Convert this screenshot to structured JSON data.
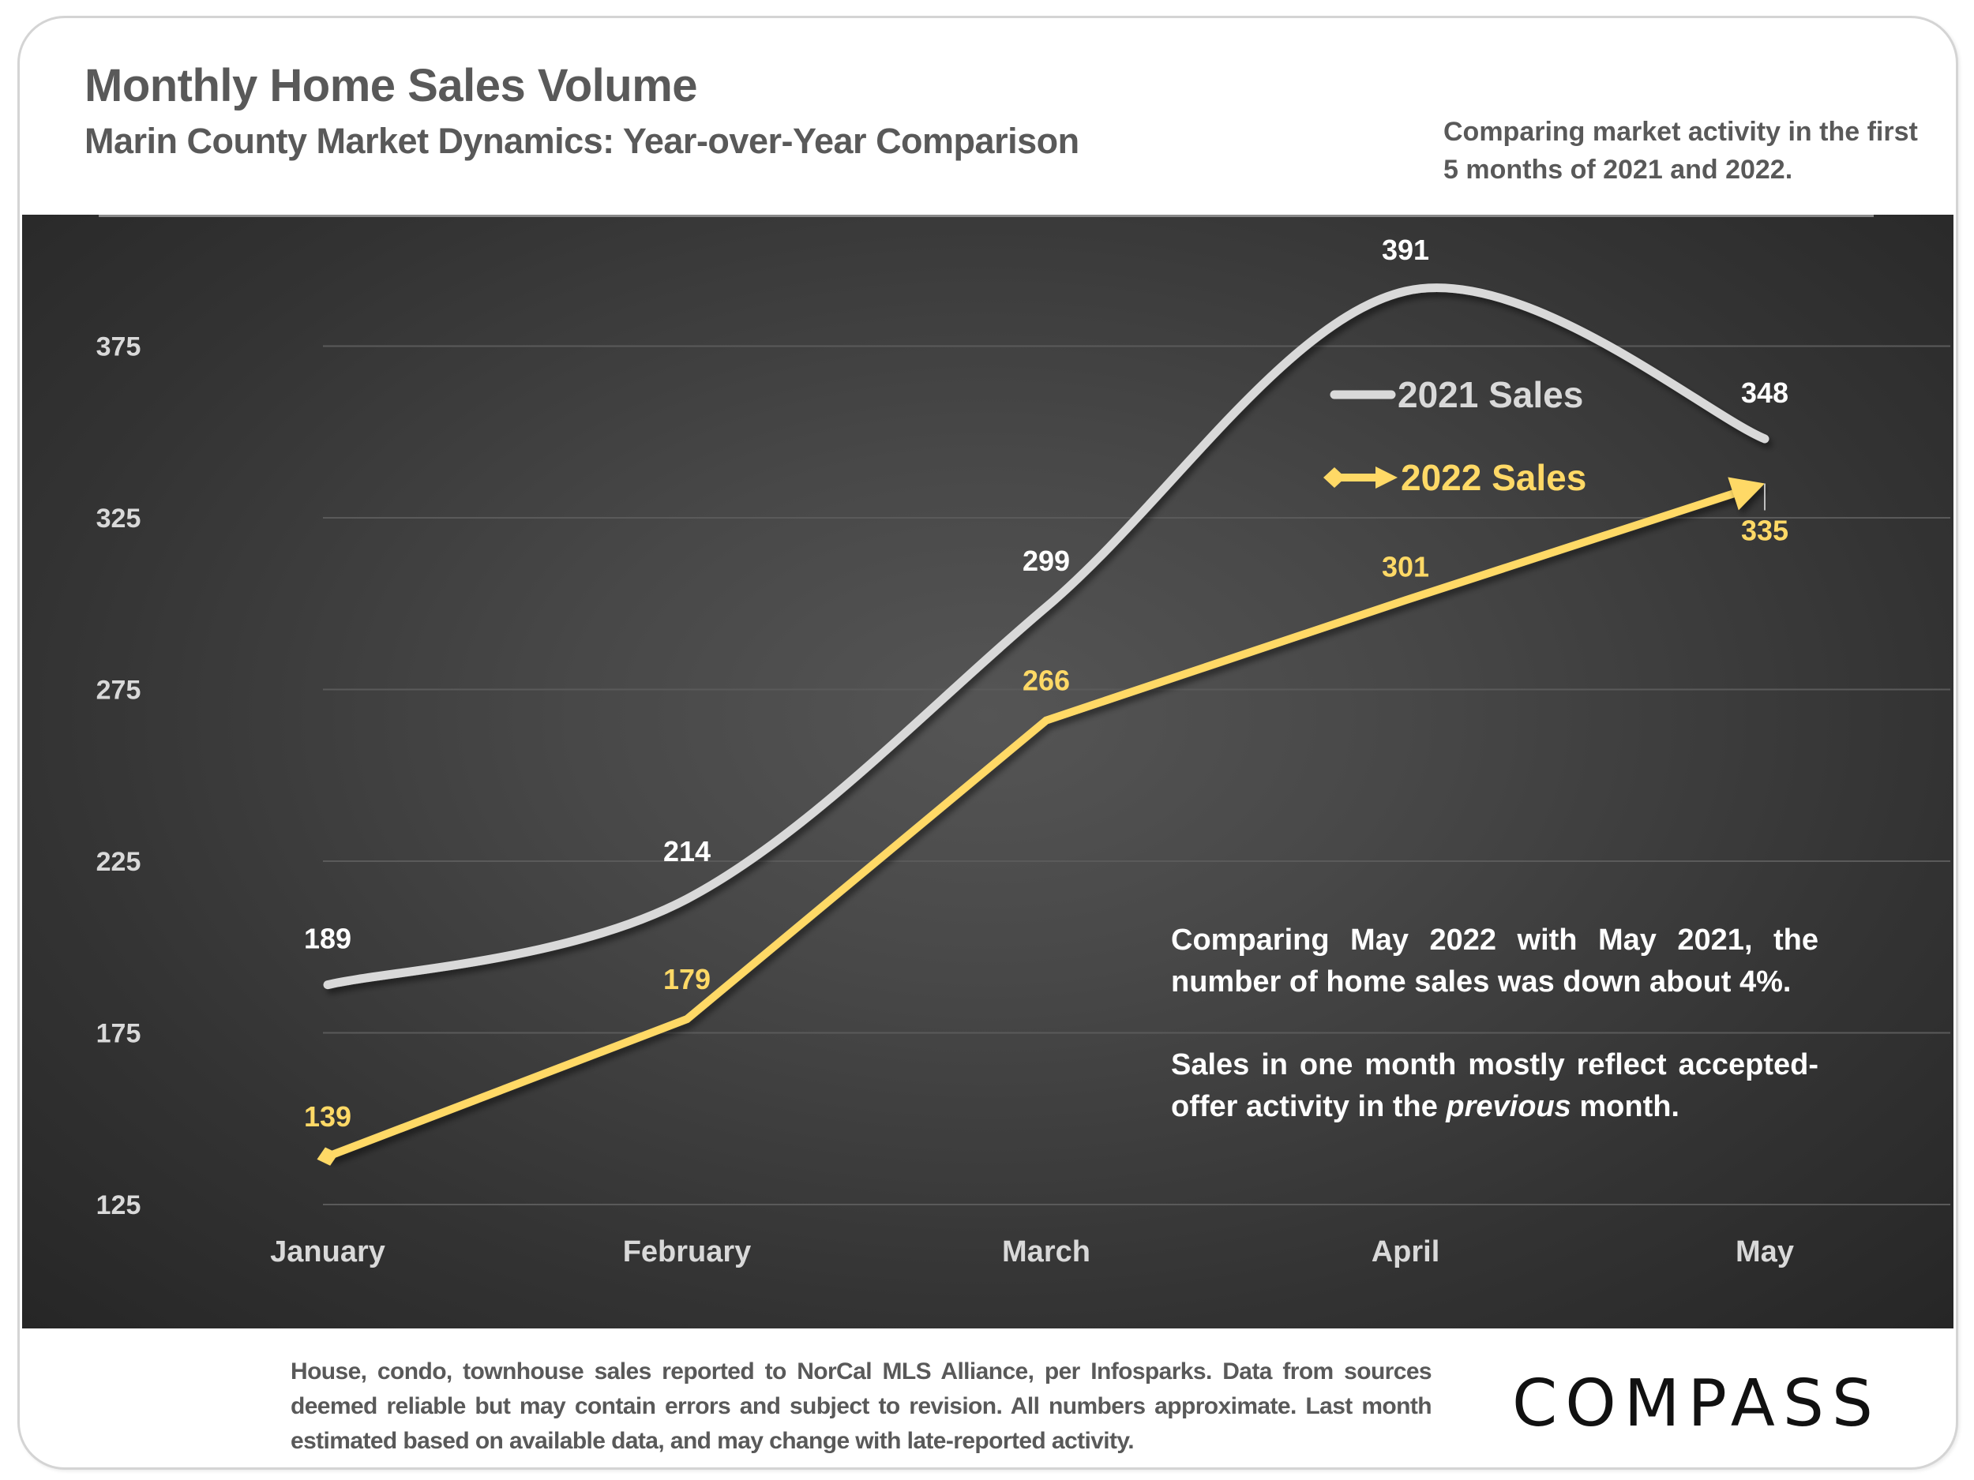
{
  "header": {
    "title": "Monthly Home Sales Volume",
    "subtitle": "Marin County Market Dynamics: Year-over-Year Comparison",
    "note": "Comparing market activity in the first 5 months of 2021 and 2022."
  },
  "annotation": {
    "para1": "Comparing May 2022 with May 2021, the number of home sales was down about 4%.",
    "para2_before": "Sales in one month mostly reflect accepted-offer activity in the ",
    "para2_emphasis": "previous",
    "para2_after": " month."
  },
  "footer": {
    "footnote": "House, condo, townhouse sales reported to NorCal MLS Alliance, per Infosparks. Data from sources deemed reliable but may contain errors and subject to revision. All numbers approximate. Last month estimated based on available data, and may change with late-reported activity.",
    "logo": "COMPASS"
  },
  "colors": {
    "series_2021": "#d9d9d9",
    "series_2022": "#ffd966",
    "label_2021": "#ffffff",
    "axis_text": "#d9d9d9",
    "gridline": "#5a5a5a",
    "header_text": "#595959"
  },
  "chart_data": {
    "type": "line",
    "title": "Monthly Home Sales Volume",
    "subtitle": "Marin County Market Dynamics: Year-over-Year Comparison",
    "xlabel": "",
    "ylabel": "",
    "categories": [
      "January",
      "February",
      "March",
      "April",
      "May"
    ],
    "series": [
      {
        "name": "2021 Sales",
        "values": [
          189,
          214,
          299,
          391,
          348
        ],
        "smooth": true,
        "marker_start": "none",
        "marker_end": "none"
      },
      {
        "name": "2022 Sales",
        "values": [
          139,
          179,
          266,
          301,
          335
        ],
        "smooth": false,
        "marker_start": "diamond",
        "marker_end": "arrow"
      }
    ],
    "yticks": [
      125,
      175,
      225,
      275,
      325,
      375
    ],
    "ylim": [
      125,
      400
    ],
    "grid": true,
    "legend_position": "inside-top-right"
  }
}
